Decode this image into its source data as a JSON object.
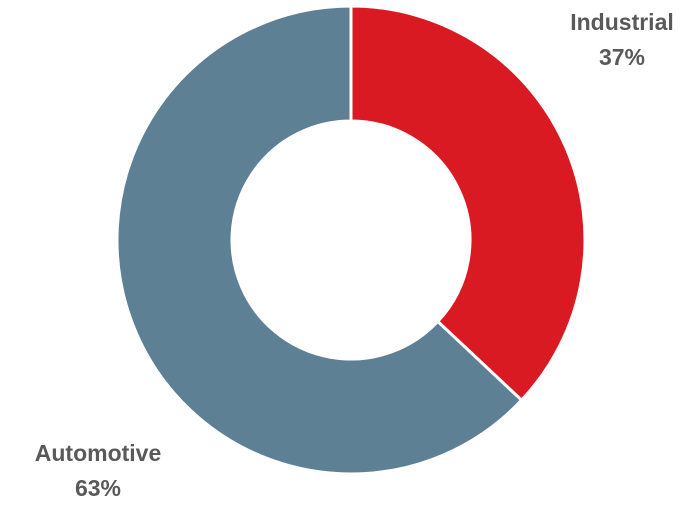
{
  "chart_data": {
    "type": "pie",
    "variant": "donut",
    "title": "",
    "slices": [
      {
        "label": "Industrial",
        "value": 37,
        "value_label": "37%",
        "color": "#D91A23"
      },
      {
        "label": "Automotive",
        "value": 63,
        "value_label": "63%",
        "color": "#5E8095"
      }
    ],
    "legend": "none",
    "labels_outside": true
  }
}
